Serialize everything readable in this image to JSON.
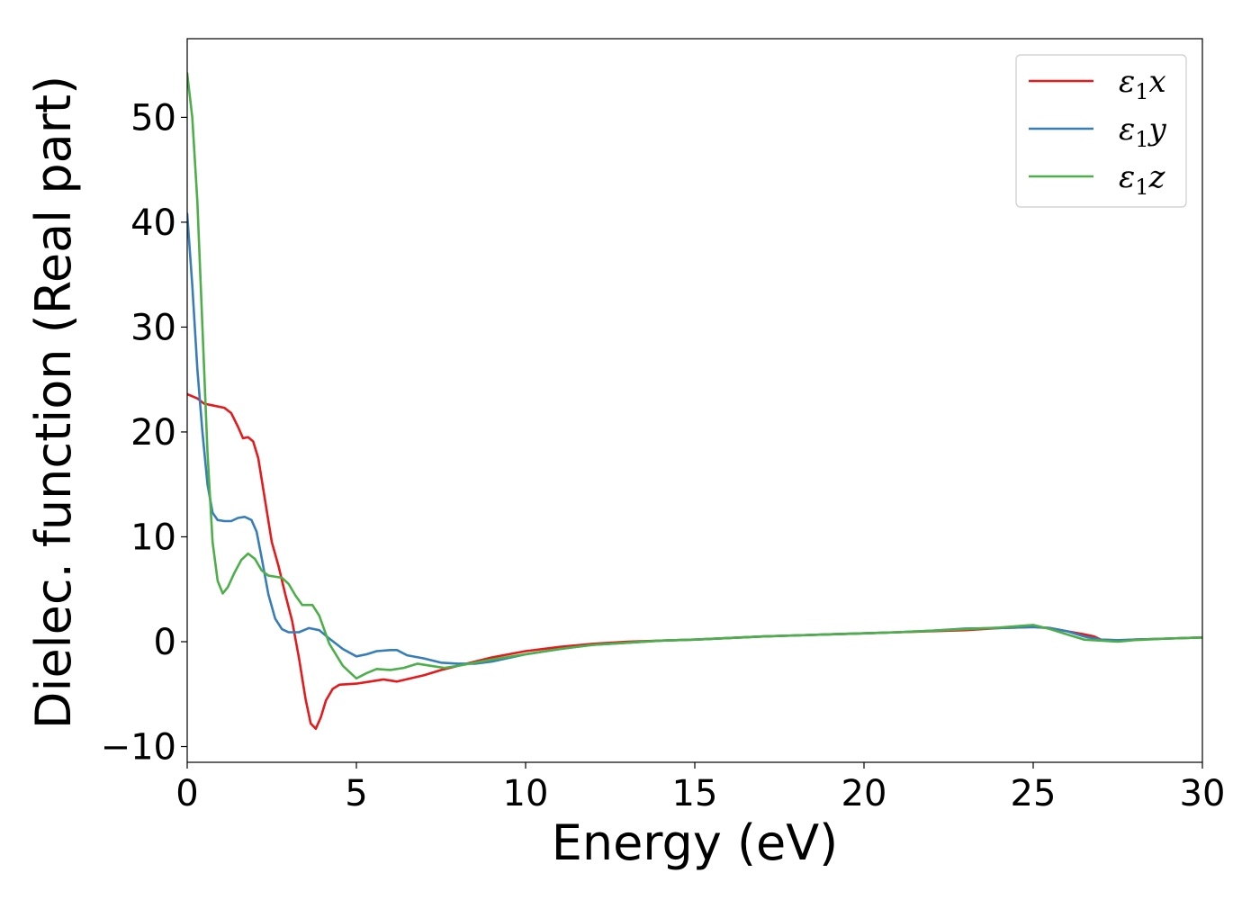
{
  "chart_data": {
    "type": "line",
    "title": "",
    "xlabel": "Energy (eV)",
    "ylabel": "Dielec. function (Real part)",
    "xlim": [
      0,
      30
    ],
    "ylim": [
      -11.5,
      57.5
    ],
    "x_ticks": [
      0,
      5,
      10,
      15,
      20,
      25,
      30
    ],
    "y_ticks": [
      -10,
      0,
      10,
      20,
      30,
      40,
      50
    ],
    "y_tick_labels": [
      "−10",
      "0",
      "10",
      "20",
      "30",
      "40",
      "50"
    ],
    "grid": false,
    "legend_position": "top-right",
    "series": [
      {
        "name": "ε₁x",
        "legend_main": "ε",
        "legend_sub": "1",
        "legend_var": "x",
        "color": "#e41a1c",
        "points": [
          [
            0,
            23.6
          ],
          [
            0.3,
            23.2
          ],
          [
            0.5,
            22.7
          ],
          [
            0.8,
            22.5
          ],
          [
            1.1,
            22.3
          ],
          [
            1.3,
            21.8
          ],
          [
            1.5,
            20.5
          ],
          [
            1.65,
            19.4
          ],
          [
            1.8,
            19.5
          ],
          [
            1.95,
            19.1
          ],
          [
            2.1,
            17.5
          ],
          [
            2.3,
            13.5
          ],
          [
            2.5,
            9.5
          ],
          [
            2.7,
            7.2
          ],
          [
            2.9,
            4.5
          ],
          [
            3.1,
            2.0
          ],
          [
            3.3,
            -1.5
          ],
          [
            3.5,
            -5.5
          ],
          [
            3.65,
            -7.8
          ],
          [
            3.8,
            -8.3
          ],
          [
            3.95,
            -7.2
          ],
          [
            4.1,
            -5.6
          ],
          [
            4.3,
            -4.5
          ],
          [
            4.5,
            -4.1
          ],
          [
            5.0,
            -4.0
          ],
          [
            5.4,
            -3.8
          ],
          [
            5.8,
            -3.6
          ],
          [
            6.2,
            -3.8
          ],
          [
            6.6,
            -3.5
          ],
          [
            7.0,
            -3.2
          ],
          [
            7.5,
            -2.7
          ],
          [
            8.0,
            -2.3
          ],
          [
            8.5,
            -1.9
          ],
          [
            9.0,
            -1.5
          ],
          [
            10,
            -0.9
          ],
          [
            11,
            -0.5
          ],
          [
            12,
            -0.2
          ],
          [
            13,
            0.0
          ],
          [
            14,
            0.1
          ],
          [
            15,
            0.2
          ],
          [
            16,
            0.35
          ],
          [
            17,
            0.5
          ],
          [
            18,
            0.6
          ],
          [
            19,
            0.7
          ],
          [
            20,
            0.8
          ],
          [
            21,
            0.9
          ],
          [
            22,
            1.0
          ],
          [
            23,
            1.1
          ],
          [
            24,
            1.3
          ],
          [
            25,
            1.4
          ],
          [
            25.5,
            1.3
          ],
          [
            26,
            1.0
          ],
          [
            26.5,
            0.7
          ],
          [
            26.8,
            0.5
          ],
          [
            27,
            0.2
          ],
          [
            27.5,
            0.1
          ],
          [
            28,
            0.2
          ],
          [
            29,
            0.3
          ],
          [
            30,
            0.4
          ]
        ]
      },
      {
        "name": "ε₁y",
        "legend_main": "ε",
        "legend_sub": "1",
        "legend_var": "y",
        "color": "#377eb8",
        "points": [
          [
            0,
            40.8
          ],
          [
            0.15,
            34.0
          ],
          [
            0.3,
            26.0
          ],
          [
            0.45,
            20.0
          ],
          [
            0.6,
            15.0
          ],
          [
            0.75,
            12.3
          ],
          [
            0.9,
            11.6
          ],
          [
            1.1,
            11.5
          ],
          [
            1.3,
            11.5
          ],
          [
            1.5,
            11.8
          ],
          [
            1.7,
            11.9
          ],
          [
            1.9,
            11.6
          ],
          [
            2.05,
            10.5
          ],
          [
            2.2,
            8.0
          ],
          [
            2.4,
            4.5
          ],
          [
            2.6,
            2.2
          ],
          [
            2.8,
            1.2
          ],
          [
            3.0,
            0.9
          ],
          [
            3.3,
            0.9
          ],
          [
            3.6,
            1.3
          ],
          [
            3.9,
            1.1
          ],
          [
            4.2,
            0.3
          ],
          [
            4.6,
            -0.7
          ],
          [
            5.0,
            -1.4
          ],
          [
            5.3,
            -1.2
          ],
          [
            5.6,
            -0.9
          ],
          [
            6.0,
            -0.8
          ],
          [
            6.2,
            -0.8
          ],
          [
            6.5,
            -1.3
          ],
          [
            7.0,
            -1.6
          ],
          [
            7.5,
            -2.0
          ],
          [
            8.0,
            -2.1
          ],
          [
            8.5,
            -2.1
          ],
          [
            9.0,
            -1.9
          ],
          [
            10,
            -1.2
          ],
          [
            11,
            -0.7
          ],
          [
            12,
            -0.3
          ],
          [
            13,
            -0.1
          ],
          [
            14,
            0.1
          ],
          [
            15,
            0.2
          ],
          [
            16,
            0.35
          ],
          [
            17,
            0.5
          ],
          [
            18,
            0.6
          ],
          [
            19,
            0.7
          ],
          [
            20,
            0.8
          ],
          [
            21,
            0.9
          ],
          [
            22,
            1.05
          ],
          [
            23,
            1.25
          ],
          [
            24,
            1.3
          ],
          [
            25,
            1.4
          ],
          [
            25.5,
            1.3
          ],
          [
            26,
            1.0
          ],
          [
            26.5,
            0.5
          ],
          [
            27,
            0.2
          ],
          [
            27.5,
            0.15
          ],
          [
            28,
            0.2
          ],
          [
            29,
            0.3
          ],
          [
            30,
            0.4
          ]
        ]
      },
      {
        "name": "ε₁z",
        "legend_main": "ε",
        "legend_sub": "1",
        "legend_var": "z",
        "color": "#4daf4a",
        "points": [
          [
            0,
            54.2
          ],
          [
            0.15,
            50.0
          ],
          [
            0.3,
            42.0
          ],
          [
            0.45,
            30.0
          ],
          [
            0.6,
            18.0
          ],
          [
            0.75,
            9.5
          ],
          [
            0.9,
            5.8
          ],
          [
            1.05,
            4.6
          ],
          [
            1.2,
            5.2
          ],
          [
            1.4,
            6.6
          ],
          [
            1.6,
            7.8
          ],
          [
            1.8,
            8.4
          ],
          [
            2.0,
            7.9
          ],
          [
            2.2,
            6.8
          ],
          [
            2.4,
            6.3
          ],
          [
            2.6,
            6.2
          ],
          [
            2.8,
            6.1
          ],
          [
            3.0,
            5.5
          ],
          [
            3.2,
            4.4
          ],
          [
            3.4,
            3.5
          ],
          [
            3.7,
            3.5
          ],
          [
            3.9,
            2.5
          ],
          [
            4.2,
            -0.2
          ],
          [
            4.6,
            -2.3
          ],
          [
            5.0,
            -3.5
          ],
          [
            5.3,
            -3.0
          ],
          [
            5.6,
            -2.6
          ],
          [
            6.0,
            -2.7
          ],
          [
            6.4,
            -2.5
          ],
          [
            6.8,
            -2.1
          ],
          [
            7.2,
            -2.3
          ],
          [
            7.6,
            -2.5
          ],
          [
            8.0,
            -2.3
          ],
          [
            8.5,
            -2.0
          ],
          [
            9.0,
            -1.7
          ],
          [
            10,
            -1.2
          ],
          [
            11,
            -0.7
          ],
          [
            12,
            -0.3
          ],
          [
            13,
            -0.1
          ],
          [
            14,
            0.1
          ],
          [
            15,
            0.2
          ],
          [
            16,
            0.35
          ],
          [
            17,
            0.5
          ],
          [
            18,
            0.6
          ],
          [
            19,
            0.7
          ],
          [
            20,
            0.8
          ],
          [
            21,
            0.9
          ],
          [
            22,
            1.05
          ],
          [
            23,
            1.2
          ],
          [
            24,
            1.35
          ],
          [
            25,
            1.6
          ],
          [
            25.5,
            1.2
          ],
          [
            26,
            0.7
          ],
          [
            26.5,
            0.2
          ],
          [
            27,
            0.1
          ],
          [
            27.5,
            0.0
          ],
          [
            28,
            0.15
          ],
          [
            29,
            0.3
          ],
          [
            30,
            0.4
          ]
        ]
      }
    ]
  }
}
